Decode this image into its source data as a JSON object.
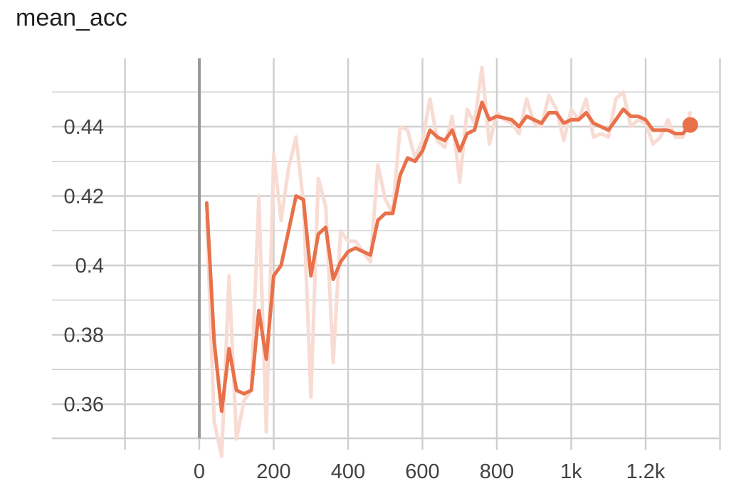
{
  "chart_data": {
    "type": "line",
    "title": "mean_acc",
    "xlabel": "",
    "ylabel": "",
    "xlim": [
      -200,
      1400
    ],
    "ylim": [
      0.35,
      0.458
    ],
    "x_ticks": [
      0,
      200,
      400,
      600,
      800,
      1000,
      1200
    ],
    "x_tick_labels": [
      "0",
      "200",
      "400",
      "600",
      "800",
      "1k",
      "1.2k"
    ],
    "y_ticks": [
      0.36,
      0.38,
      0.4,
      0.42,
      0.44
    ],
    "y_tick_labels": [
      "0.36",
      "0.38",
      "0.4",
      "0.42",
      "0.44"
    ],
    "grid": true,
    "colors": {
      "smoothed": "#e8714a",
      "raw": "#f8dcd4",
      "grid": "#cccccc",
      "zero_line": "#999999"
    },
    "series": [
      {
        "role": "smoothed",
        "x": [
          20,
          40,
          60,
          80,
          100,
          120,
          140,
          160,
          180,
          200,
          220,
          240,
          260,
          280,
          300,
          320,
          340,
          360,
          380,
          400,
          420,
          440,
          460,
          480,
          500,
          520,
          540,
          560,
          580,
          600,
          620,
          640,
          660,
          680,
          700,
          720,
          740,
          760,
          780,
          800,
          820,
          840,
          860,
          880,
          900,
          920,
          940,
          960,
          980,
          1000,
          1020,
          1040,
          1060,
          1080,
          1100,
          1120,
          1140,
          1160,
          1180,
          1200,
          1220,
          1240,
          1260,
          1280,
          1300,
          1320
        ],
        "y": [
          0.418,
          0.378,
          0.358,
          0.376,
          0.364,
          0.363,
          0.364,
          0.387,
          0.373,
          0.397,
          0.4,
          0.41,
          0.42,
          0.419,
          0.397,
          0.409,
          0.411,
          0.396,
          0.401,
          0.404,
          0.405,
          0.404,
          0.403,
          0.413,
          0.415,
          0.415,
          0.426,
          0.431,
          0.43,
          0.433,
          0.439,
          0.437,
          0.436,
          0.439,
          0.433,
          0.438,
          0.439,
          0.447,
          0.442,
          0.443,
          0.4425,
          0.442,
          0.44,
          0.443,
          0.442,
          0.441,
          0.444,
          0.444,
          0.441,
          0.442,
          0.442,
          0.444,
          0.441,
          0.44,
          0.439,
          0.442,
          0.445,
          0.443,
          0.443,
          0.442,
          0.439,
          0.439,
          0.439,
          0.438,
          0.438,
          0.4405
        ]
      },
      {
        "role": "raw",
        "x": [
          20,
          40,
          60,
          80,
          100,
          120,
          140,
          160,
          180,
          200,
          220,
          240,
          260,
          280,
          300,
          320,
          340,
          360,
          380,
          400,
          420,
          440,
          460,
          480,
          500,
          520,
          540,
          560,
          580,
          600,
          620,
          640,
          660,
          680,
          700,
          720,
          740,
          760,
          780,
          800,
          820,
          840,
          860,
          880,
          900,
          920,
          940,
          960,
          980,
          1000,
          1020,
          1040,
          1060,
          1080,
          1100,
          1120,
          1140,
          1160,
          1180,
          1200,
          1220,
          1240,
          1260,
          1280,
          1300,
          1320
        ],
        "y": [
          0.414,
          0.355,
          0.345,
          0.397,
          0.35,
          0.361,
          0.364,
          0.42,
          0.352,
          0.432,
          0.413,
          0.428,
          0.437,
          0.418,
          0.362,
          0.425,
          0.417,
          0.372,
          0.41,
          0.407,
          0.407,
          0.404,
          0.401,
          0.429,
          0.419,
          0.415,
          0.44,
          0.439,
          0.431,
          0.436,
          0.448,
          0.436,
          0.434,
          0.443,
          0.424,
          0.445,
          0.441,
          0.457,
          0.435,
          0.444,
          0.442,
          0.441,
          0.438,
          0.448,
          0.441,
          0.44,
          0.449,
          0.445,
          0.436,
          0.445,
          0.442,
          0.448,
          0.437,
          0.438,
          0.437,
          0.448,
          0.45,
          0.44,
          0.442,
          0.441,
          0.435,
          0.437,
          0.442,
          0.437,
          0.437,
          0.444
        ]
      }
    ],
    "last_point": {
      "x": 1320,
      "y": 0.4405
    }
  }
}
